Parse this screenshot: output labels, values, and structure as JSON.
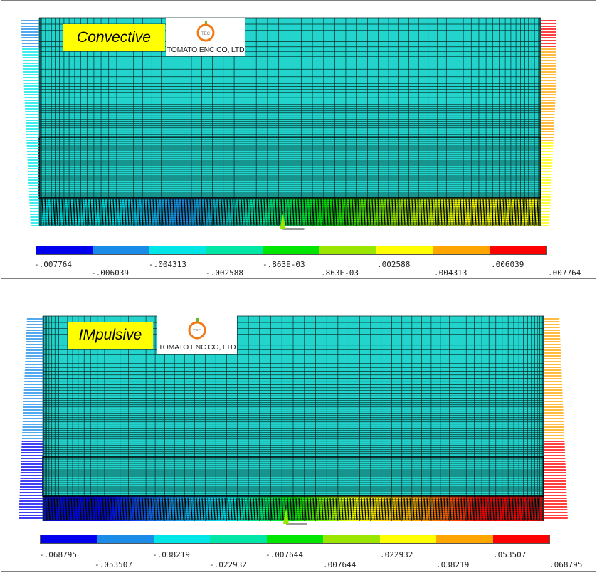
{
  "panels": [
    {
      "id": "convective",
      "label": "Convective",
      "logo_text": "TOMATO ENC CO, LTD",
      "logo_mark": "TEC",
      "legend_colors": [
        "#0000ee",
        "#1a8ce8",
        "#00e6e6",
        "#00e6a6",
        "#00e600",
        "#9ae600",
        "#ffff00",
        "#ffa500",
        "#ff0000"
      ],
      "legend_ticks": [
        ".007764"
      ],
      "legend_ticks_all": [
        "-.007764",
        "-.006039",
        "-.004313",
        "-.002588",
        "-.863E-03",
        ".863E-03",
        ".002588",
        ".004313",
        ".006039",
        ".007764"
      ]
    },
    {
      "id": "impulsive",
      "label": "IMpulsive",
      "logo_text": "TOMATO ENC CO, LTD",
      "logo_mark": "TEC",
      "legend_colors": [
        "#0000ee",
        "#1a8ce8",
        "#00e6e6",
        "#00e6a6",
        "#00e600",
        "#9ae600",
        "#ffff00",
        "#ffa500",
        "#ff0000"
      ],
      "legend_ticks_all": [
        "-.068795",
        "-.053507",
        "-.038219",
        "-.022932",
        "-.007644",
        ".007644",
        ".022932",
        ".038219",
        ".053507",
        ".068795"
      ]
    }
  ]
}
